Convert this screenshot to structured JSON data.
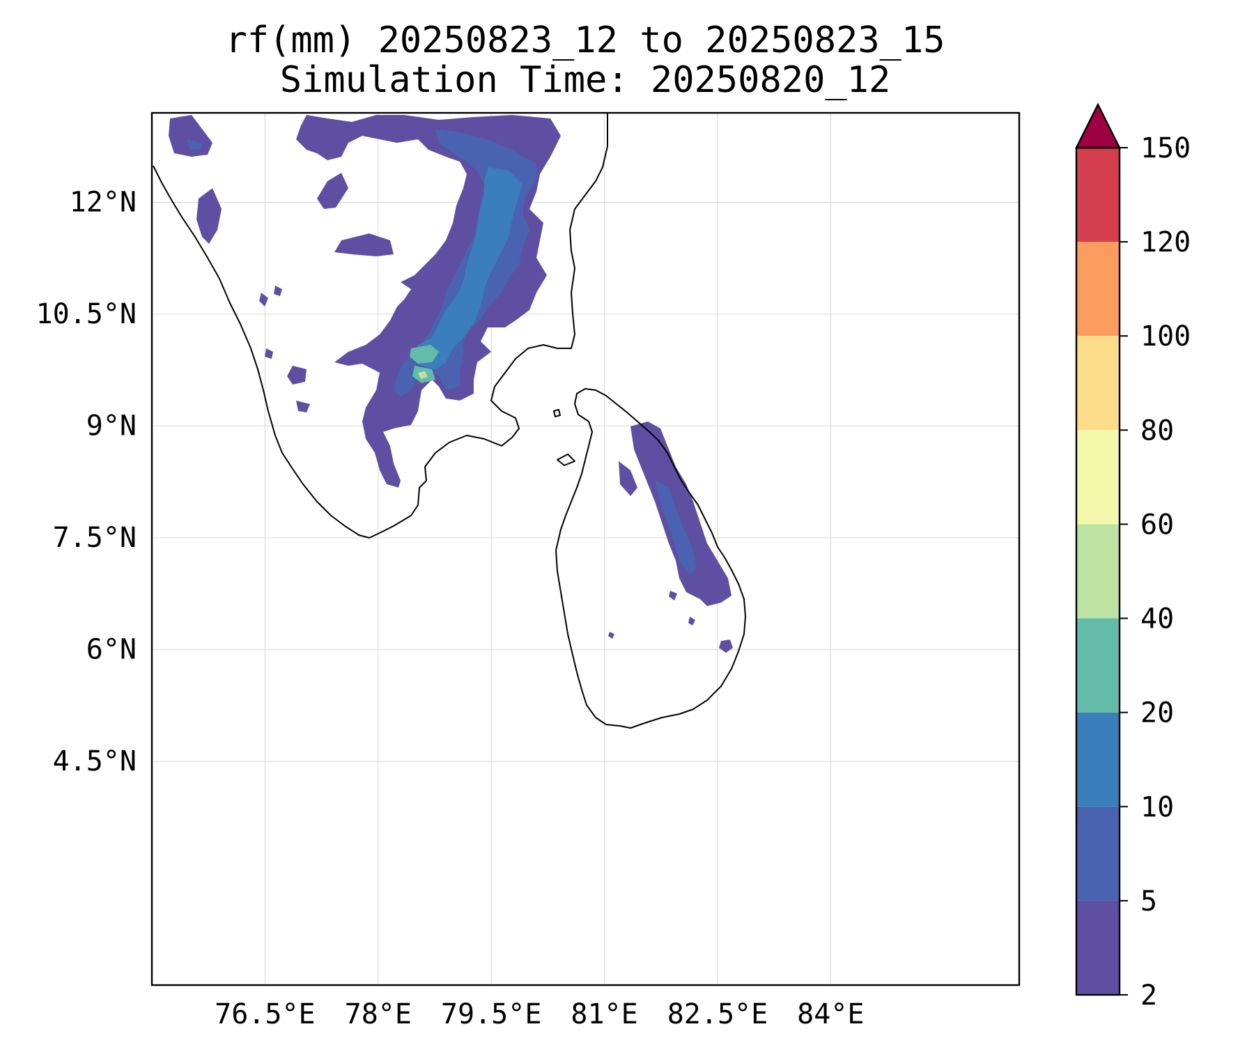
{
  "title": {
    "line1": "rf(mm) 20250823_12 to 20250823_15",
    "line2": "Simulation Time: 20250820_12"
  },
  "map": {
    "projection": "PlateCarree",
    "lon_range": [
      75.0,
      86.5
    ],
    "lat_range": [
      1.5,
      13.2
    ],
    "lon_ticks": [
      76.5,
      78,
      79.5,
      81,
      82.5,
      84
    ],
    "lon_tick_labels": [
      "76.5°E",
      "78°E",
      "79.5°E",
      "81°E",
      "82.5°E",
      "84°E"
    ],
    "lat_ticks": [
      12,
      10.5,
      9,
      7.5,
      6,
      4.5
    ],
    "lat_tick_labels": [
      "12°N",
      "10.5°N",
      "9°N",
      "7.5°N",
      "6°N",
      "4.5°N"
    ],
    "gridlines": true,
    "coastline_color": "#000000"
  },
  "colorbar": {
    "levels": [
      2,
      5,
      10,
      20,
      40,
      60,
      80,
      100,
      120,
      150
    ],
    "labels": [
      "2",
      "5",
      "10",
      "20",
      "40",
      "60",
      "80",
      "100",
      "120",
      "150"
    ],
    "colors": [
      "#5e4fa2",
      "#4a63b0",
      "#3a7fbb",
      "#63bca9",
      "#bde3a2",
      "#f3f8ab",
      "#fbdd89",
      "#f99c5d",
      "#d53e4f"
    ],
    "extend": "max",
    "extend_color": "#9e0142",
    "placement": "right"
  }
}
